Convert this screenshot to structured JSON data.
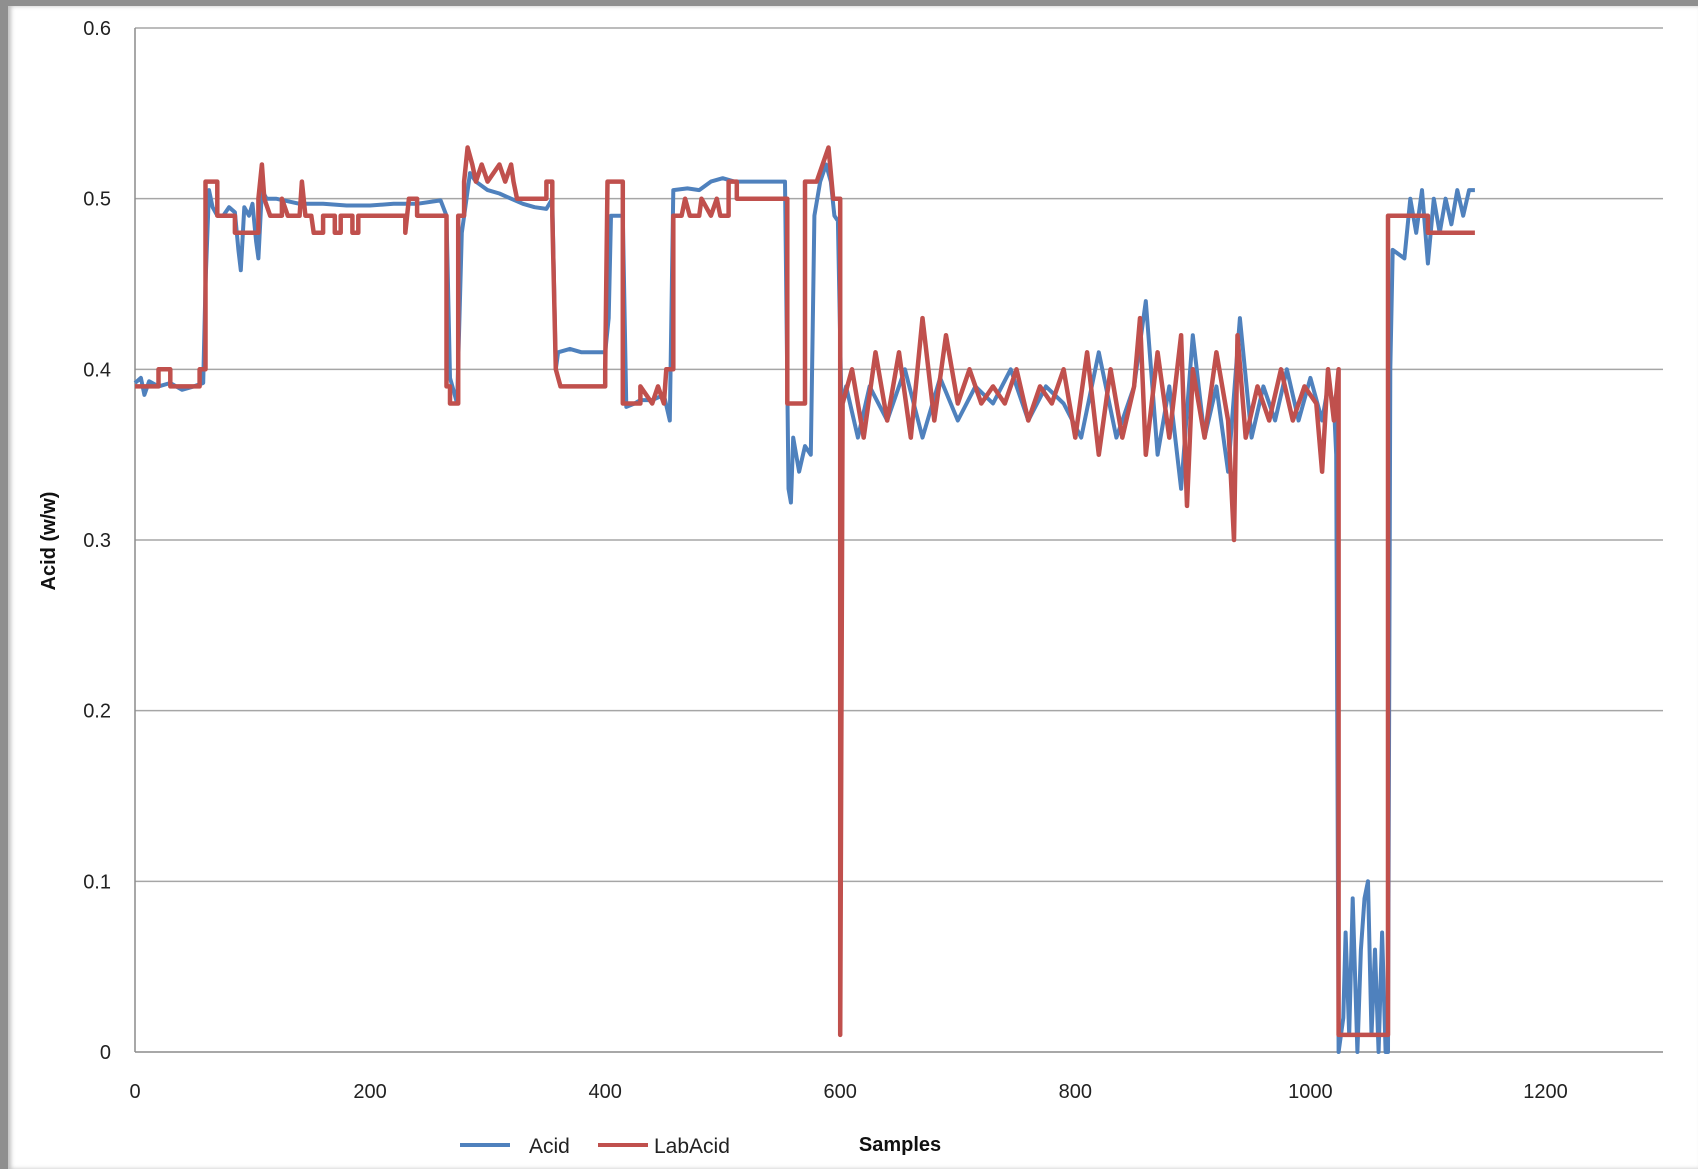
{
  "chart_data": {
    "type": "line",
    "title": "",
    "xlabel": "Samples",
    "ylabel": "Acid (w/w)",
    "xlim": [
      0,
      1300
    ],
    "ylim": [
      0,
      0.6
    ],
    "x_ticks": [
      "0",
      "200",
      "400",
      "600",
      "800",
      "1000",
      "1200"
    ],
    "y_ticks": [
      "0",
      "0.1",
      "0.2",
      "0.3",
      "0.4",
      "0.5",
      "0.6"
    ],
    "grid": "horizontal",
    "legend": "bottom-left",
    "series": [
      {
        "name": "Acid",
        "color": "#4f81bd",
        "points": [
          [
            0,
            0.392
          ],
          [
            5,
            0.395
          ],
          [
            8,
            0.385
          ],
          [
            12,
            0.393
          ],
          [
            20,
            0.39
          ],
          [
            30,
            0.392
          ],
          [
            40,
            0.388
          ],
          [
            50,
            0.39
          ],
          [
            58,
            0.392
          ],
          [
            60,
            0.45
          ],
          [
            63,
            0.505
          ],
          [
            66,
            0.495
          ],
          [
            70,
            0.49
          ],
          [
            75,
            0.49
          ],
          [
            80,
            0.495
          ],
          [
            85,
            0.492
          ],
          [
            88,
            0.47
          ],
          [
            90,
            0.458
          ],
          [
            93,
            0.495
          ],
          [
            97,
            0.49
          ],
          [
            100,
            0.497
          ],
          [
            103,
            0.475
          ],
          [
            105,
            0.465
          ],
          [
            108,
            0.505
          ],
          [
            112,
            0.5
          ],
          [
            120,
            0.5
          ],
          [
            140,
            0.497
          ],
          [
            160,
            0.497
          ],
          [
            180,
            0.496
          ],
          [
            200,
            0.496
          ],
          [
            220,
            0.497
          ],
          [
            240,
            0.497
          ],
          [
            260,
            0.499
          ],
          [
            265,
            0.49
          ],
          [
            268,
            0.395
          ],
          [
            270,
            0.39
          ],
          [
            274,
            0.38
          ],
          [
            278,
            0.48
          ],
          [
            282,
            0.5
          ],
          [
            285,
            0.515
          ],
          [
            290,
            0.51
          ],
          [
            300,
            0.505
          ],
          [
            310,
            0.503
          ],
          [
            320,
            0.5
          ],
          [
            330,
            0.497
          ],
          [
            340,
            0.495
          ],
          [
            350,
            0.494
          ],
          [
            355,
            0.5
          ],
          [
            358,
            0.4
          ],
          [
            360,
            0.41
          ],
          [
            370,
            0.412
          ],
          [
            380,
            0.41
          ],
          [
            390,
            0.41
          ],
          [
            400,
            0.41
          ],
          [
            403,
            0.43
          ],
          [
            405,
            0.49
          ],
          [
            410,
            0.49
          ],
          [
            415,
            0.49
          ],
          [
            418,
            0.378
          ],
          [
            425,
            0.38
          ],
          [
            430,
            0.382
          ],
          [
            440,
            0.382
          ],
          [
            450,
            0.385
          ],
          [
            455,
            0.37
          ],
          [
            458,
            0.505
          ],
          [
            470,
            0.506
          ],
          [
            480,
            0.505
          ],
          [
            490,
            0.51
          ],
          [
            500,
            0.512
          ],
          [
            510,
            0.51
          ],
          [
            520,
            0.51
          ],
          [
            540,
            0.51
          ],
          [
            553,
            0.51
          ],
          [
            556,
            0.33
          ],
          [
            558,
            0.322
          ],
          [
            560,
            0.36
          ],
          [
            565,
            0.34
          ],
          [
            570,
            0.355
          ],
          [
            575,
            0.35
          ],
          [
            578,
            0.49
          ],
          [
            583,
            0.51
          ],
          [
            588,
            0.52
          ],
          [
            592,
            0.51
          ],
          [
            595,
            0.49
          ],
          [
            598,
            0.487
          ],
          [
            601,
            0.38
          ],
          [
            605,
            0.39
          ],
          [
            615,
            0.36
          ],
          [
            625,
            0.39
          ],
          [
            640,
            0.37
          ],
          [
            655,
            0.4
          ],
          [
            670,
            0.36
          ],
          [
            685,
            0.395
          ],
          [
            700,
            0.37
          ],
          [
            715,
            0.39
          ],
          [
            730,
            0.38
          ],
          [
            745,
            0.4
          ],
          [
            760,
            0.37
          ],
          [
            775,
            0.39
          ],
          [
            790,
            0.38
          ],
          [
            805,
            0.36
          ],
          [
            820,
            0.41
          ],
          [
            835,
            0.36
          ],
          [
            850,
            0.39
          ],
          [
            860,
            0.44
          ],
          [
            870,
            0.35
          ],
          [
            880,
            0.39
          ],
          [
            890,
            0.33
          ],
          [
            900,
            0.42
          ],
          [
            910,
            0.36
          ],
          [
            920,
            0.39
          ],
          [
            930,
            0.34
          ],
          [
            940,
            0.43
          ],
          [
            950,
            0.36
          ],
          [
            960,
            0.39
          ],
          [
            970,
            0.37
          ],
          [
            980,
            0.4
          ],
          [
            990,
            0.37
          ],
          [
            1000,
            0.395
          ],
          [
            1010,
            0.37
          ],
          [
            1015,
            0.39
          ],
          [
            1020,
            0.38
          ],
          [
            1022,
            0.35
          ],
          [
            1024,
            0.0
          ],
          [
            1028,
            0.02
          ],
          [
            1030,
            0.07
          ],
          [
            1033,
            0.01
          ],
          [
            1036,
            0.09
          ],
          [
            1040,
            0.0
          ],
          [
            1043,
            0.06
          ],
          [
            1046,
            0.09
          ],
          [
            1049,
            0.1
          ],
          [
            1052,
            0.01
          ],
          [
            1055,
            0.06
          ],
          [
            1058,
            0.0
          ],
          [
            1061,
            0.07
          ],
          [
            1064,
            0.0
          ],
          [
            1066,
            0.0
          ],
          [
            1068,
            0.4
          ],
          [
            1070,
            0.47
          ],
          [
            1080,
            0.465
          ],
          [
            1085,
            0.5
          ],
          [
            1090,
            0.48
          ],
          [
            1095,
            0.505
          ],
          [
            1100,
            0.462
          ],
          [
            1105,
            0.5
          ],
          [
            1110,
            0.48
          ],
          [
            1115,
            0.5
          ],
          [
            1120,
            0.485
          ],
          [
            1125,
            0.505
          ],
          [
            1130,
            0.49
          ],
          [
            1135,
            0.505
          ],
          [
            1140,
            0.505
          ]
        ]
      },
      {
        "name": "LabAcid",
        "color": "#c0504d",
        "points": [
          [
            0,
            0.39
          ],
          [
            20,
            0.39
          ],
          [
            20,
            0.4
          ],
          [
            30,
            0.4
          ],
          [
            30,
            0.39
          ],
          [
            55,
            0.39
          ],
          [
            55,
            0.4
          ],
          [
            60,
            0.4
          ],
          [
            60,
            0.51
          ],
          [
            70,
            0.51
          ],
          [
            70,
            0.49
          ],
          [
            85,
            0.49
          ],
          [
            85,
            0.48
          ],
          [
            105,
            0.48
          ],
          [
            105,
            0.5
          ],
          [
            108,
            0.52
          ],
          [
            110,
            0.5
          ],
          [
            115,
            0.49
          ],
          [
            125,
            0.49
          ],
          [
            125,
            0.5
          ],
          [
            130,
            0.49
          ],
          [
            140,
            0.49
          ],
          [
            142,
            0.51
          ],
          [
            145,
            0.49
          ],
          [
            150,
            0.49
          ],
          [
            152,
            0.48
          ],
          [
            160,
            0.48
          ],
          [
            160,
            0.49
          ],
          [
            170,
            0.49
          ],
          [
            170,
            0.48
          ],
          [
            175,
            0.48
          ],
          [
            175,
            0.49
          ],
          [
            185,
            0.49
          ],
          [
            185,
            0.48
          ],
          [
            190,
            0.48
          ],
          [
            190,
            0.49
          ],
          [
            230,
            0.49
          ],
          [
            230,
            0.48
          ],
          [
            233,
            0.5
          ],
          [
            240,
            0.5
          ],
          [
            240,
            0.49
          ],
          [
            265,
            0.49
          ],
          [
            265,
            0.39
          ],
          [
            268,
            0.39
          ],
          [
            268,
            0.38
          ],
          [
            275,
            0.38
          ],
          [
            275,
            0.49
          ],
          [
            280,
            0.49
          ],
          [
            280,
            0.51
          ],
          [
            283,
            0.53
          ],
          [
            287,
            0.52
          ],
          [
            290,
            0.51
          ],
          [
            295,
            0.52
          ],
          [
            300,
            0.51
          ],
          [
            310,
            0.52
          ],
          [
            315,
            0.51
          ],
          [
            320,
            0.52
          ],
          [
            322,
            0.51
          ],
          [
            325,
            0.5
          ],
          [
            350,
            0.5
          ],
          [
            350,
            0.51
          ],
          [
            355,
            0.51
          ],
          [
            355,
            0.49
          ],
          [
            358,
            0.4
          ],
          [
            362,
            0.39
          ],
          [
            400,
            0.39
          ],
          [
            400,
            0.4
          ],
          [
            402,
            0.51
          ],
          [
            415,
            0.51
          ],
          [
            415,
            0.38
          ],
          [
            430,
            0.38
          ],
          [
            430,
            0.39
          ],
          [
            440,
            0.38
          ],
          [
            445,
            0.39
          ],
          [
            450,
            0.38
          ],
          [
            452,
            0.4
          ],
          [
            458,
            0.4
          ],
          [
            458,
            0.49
          ],
          [
            465,
            0.49
          ],
          [
            468,
            0.5
          ],
          [
            472,
            0.49
          ],
          [
            480,
            0.49
          ],
          [
            482,
            0.5
          ],
          [
            490,
            0.49
          ],
          [
            495,
            0.5
          ],
          [
            498,
            0.49
          ],
          [
            505,
            0.49
          ],
          [
            505,
            0.51
          ],
          [
            512,
            0.51
          ],
          [
            512,
            0.5
          ],
          [
            555,
            0.5
          ],
          [
            555,
            0.38
          ],
          [
            570,
            0.38
          ],
          [
            570,
            0.51
          ],
          [
            580,
            0.51
          ],
          [
            585,
            0.52
          ],
          [
            590,
            0.53
          ],
          [
            594,
            0.5
          ],
          [
            600,
            0.5
          ],
          [
            600,
            0.01
          ],
          [
            602,
            0.38
          ],
          [
            610,
            0.4
          ],
          [
            620,
            0.36
          ],
          [
            630,
            0.41
          ],
          [
            640,
            0.37
          ],
          [
            650,
            0.41
          ],
          [
            660,
            0.36
          ],
          [
            670,
            0.43
          ],
          [
            680,
            0.37
          ],
          [
            690,
            0.42
          ],
          [
            700,
            0.38
          ],
          [
            710,
            0.4
          ],
          [
            720,
            0.38
          ],
          [
            730,
            0.39
          ],
          [
            740,
            0.38
          ],
          [
            750,
            0.4
          ],
          [
            760,
            0.37
          ],
          [
            770,
            0.39
          ],
          [
            780,
            0.38
          ],
          [
            790,
            0.4
          ],
          [
            800,
            0.36
          ],
          [
            810,
            0.41
          ],
          [
            820,
            0.35
          ],
          [
            830,
            0.4
          ],
          [
            840,
            0.36
          ],
          [
            850,
            0.39
          ],
          [
            855,
            0.43
          ],
          [
            860,
            0.35
          ],
          [
            870,
            0.41
          ],
          [
            880,
            0.36
          ],
          [
            890,
            0.42
          ],
          [
            895,
            0.32
          ],
          [
            900,
            0.4
          ],
          [
            910,
            0.36
          ],
          [
            920,
            0.41
          ],
          [
            930,
            0.37
          ],
          [
            935,
            0.3
          ],
          [
            938,
            0.42
          ],
          [
            945,
            0.36
          ],
          [
            955,
            0.39
          ],
          [
            965,
            0.37
          ],
          [
            975,
            0.4
          ],
          [
            985,
            0.37
          ],
          [
            995,
            0.39
          ],
          [
            1005,
            0.38
          ],
          [
            1010,
            0.34
          ],
          [
            1015,
            0.4
          ],
          [
            1020,
            0.37
          ],
          [
            1024,
            0.4
          ],
          [
            1024,
            0.01
          ],
          [
            1066,
            0.01
          ],
          [
            1066,
            0.49
          ],
          [
            1100,
            0.49
          ],
          [
            1100,
            0.48
          ],
          [
            1140,
            0.48
          ]
        ]
      }
    ]
  }
}
